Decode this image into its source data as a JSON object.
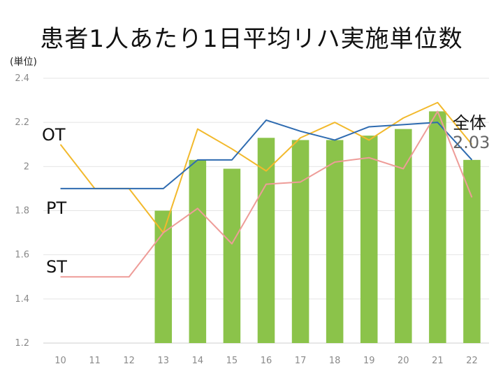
{
  "title": "患者1人あたり1日平均リハ実施単位数",
  "unit_label": "(単位)",
  "series_labels": {
    "ot": "OT",
    "pt": "PT",
    "st": "ST"
  },
  "total_label": {
    "name": "全体",
    "value": "2.03"
  },
  "colors": {
    "bar": "#8BC34A",
    "ot": "#F2B92C",
    "pt": "#2E6BB0",
    "st": "#EE9C98",
    "grid": "#E4E4E4",
    "axis": "#CFCFCF",
    "tick": "#8A8A8A"
  },
  "chart_data": {
    "type": "bar+line",
    "title": "患者1人あたり1日平均リハ実施単位数",
    "ylabel": "(単位)",
    "ylim": [
      1.2,
      2.4
    ],
    "yticks": [
      1.2,
      1.4,
      1.6,
      1.8,
      2,
      2.2,
      2.4
    ],
    "grid": true,
    "categories": [
      "10",
      "11",
      "12",
      "13",
      "14",
      "15",
      "16",
      "17",
      "18",
      "19",
      "20",
      "21",
      "22"
    ],
    "bars": {
      "name": "全体",
      "values": [
        null,
        null,
        null,
        1.8,
        2.03,
        1.99,
        2.13,
        2.12,
        2.12,
        2.14,
        2.17,
        2.25,
        2.03
      ]
    },
    "series": [
      {
        "name": "OT",
        "values": [
          2.1,
          1.9,
          1.9,
          1.7,
          2.17,
          2.08,
          1.98,
          2.13,
          2.2,
          2.12,
          2.22,
          2.29,
          2.1
        ]
      },
      {
        "name": "PT",
        "values": [
          1.9,
          1.9,
          1.9,
          1.9,
          2.03,
          2.03,
          2.21,
          2.16,
          2.12,
          2.18,
          2.19,
          2.2,
          2.03
        ]
      },
      {
        "name": "ST",
        "values": [
          1.5,
          1.5,
          1.5,
          1.7,
          1.81,
          1.65,
          1.92,
          1.93,
          2.02,
          2.04,
          1.99,
          2.25,
          1.86
        ]
      }
    ]
  }
}
